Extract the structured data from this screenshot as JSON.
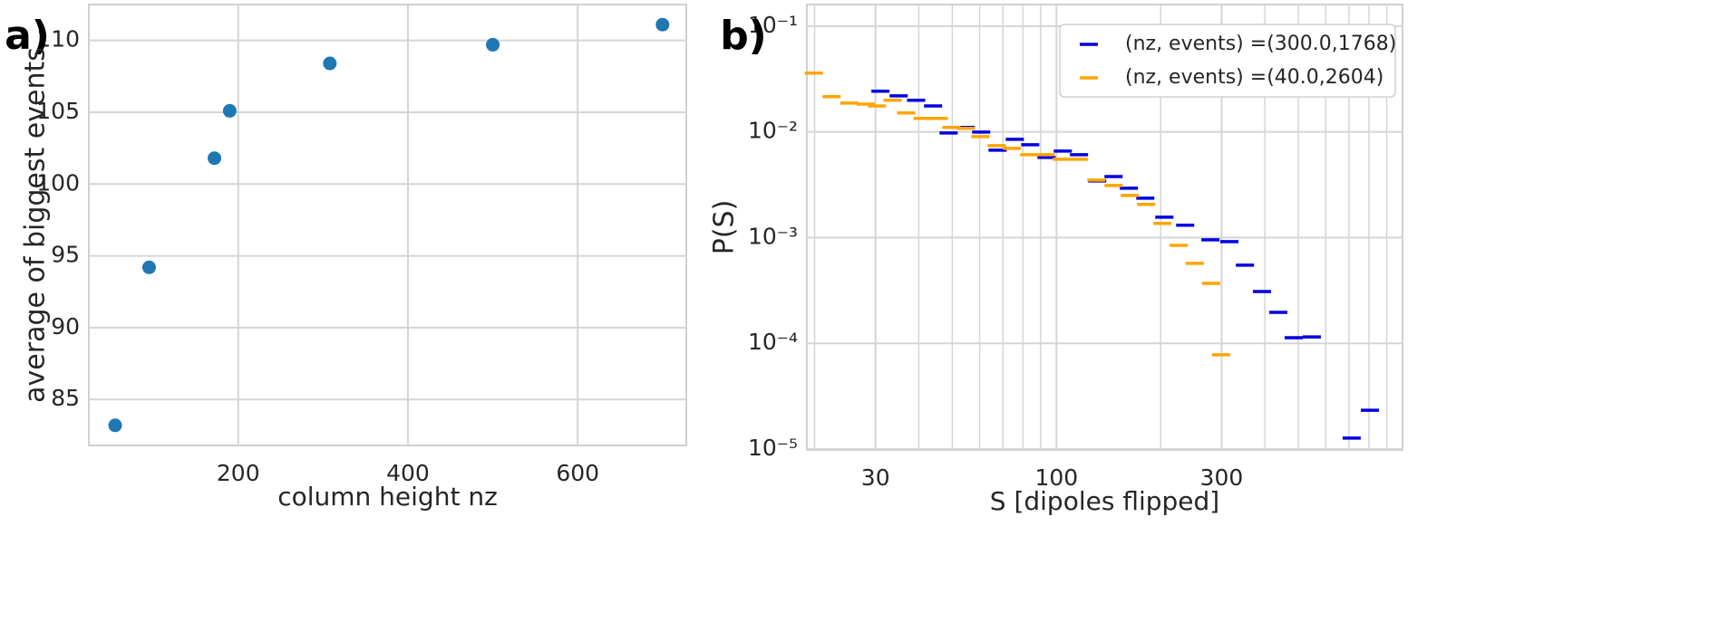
{
  "chart_data": [
    {
      "type": "scatter",
      "label": "a)",
      "xlabel": "column height nz",
      "ylabel": "average of biggest events",
      "x": [
        55,
        95,
        172,
        190,
        308,
        500,
        700
      ],
      "values": [
        83.2,
        94.2,
        101.8,
        105.1,
        108.4,
        109.7,
        111.1
      ],
      "color": "#1f77b4",
      "marker": "o",
      "xlim": [
        24,
        728
      ],
      "xticks": [
        200,
        400,
        600
      ],
      "ylim": [
        81.8,
        112.5
      ],
      "yticks": [
        85,
        90,
        95,
        100,
        105,
        110
      ],
      "grid": true
    },
    {
      "type": "scatter",
      "label": "b)",
      "xlabel": "S [dipoles flipped]",
      "ylabel": "P(S)",
      "xscale": "log",
      "yscale": "log",
      "marker": "_",
      "legend": "upper right",
      "grid": true,
      "xlim": [
        19,
        1000
      ],
      "xticks": [
        30,
        100,
        300
      ],
      "xminorticks": [
        20,
        40,
        50,
        60,
        70,
        80,
        90,
        200,
        400,
        500,
        600,
        700,
        800,
        900
      ],
      "ylim": [
        9.8e-06,
        0.16
      ],
      "yticks": [
        {
          "value": 0.1,
          "label": "10⁻¹"
        },
        {
          "value": 0.01,
          "label": "10⁻²"
        },
        {
          "value": 0.001,
          "label": "10⁻³"
        },
        {
          "value": 0.0001,
          "label": "10⁻⁴"
        },
        {
          "value": 1e-05,
          "label": "10⁻⁵"
        }
      ],
      "series": [
        {
          "name": "(nz, events) =(300.0,1768)",
          "color": "#0000e0",
          "x": [
            31.0,
            35.0,
            39.3,
            44.0,
            48.8,
            54.7,
            60.6,
            67.6,
            75.8,
            84.0,
            93.6,
            104.3,
            116.2,
            131.1,
            146.2,
            161.9,
            180.6,
            205,
            235.5,
            278.6,
            316,
            350.5,
            392.7,
            437.7,
            485,
            547,
            713,
            805
          ],
          "values": [
            0.0242,
            0.0219,
            0.0199,
            0.0176,
            0.00975,
            0.011,
            0.00996,
            0.00671,
            0.00849,
            0.00755,
            0.00573,
            0.00658,
            0.00608,
            0.00343,
            0.00378,
            0.00293,
            0.00236,
            0.00156,
            0.00131,
            0.000953,
            0.000915,
            0.000548,
            0.000309,
            0.000196,
            0.000113,
            0.000115,
            1.27e-05,
            2.33e-05
          ]
        },
        {
          "name": "(nz, events) =(40.0,2604)",
          "color": "#ffa500",
          "x": [
            19.9,
            22.4,
            25.2,
            28.1,
            30.3,
            33.6,
            36.8,
            41.0,
            45.7,
            49.7,
            54.7,
            60.3,
            67.2,
            74.4,
            83.4,
            93.0,
            103.7,
            116.2,
            130.4,
            146.2,
            162.9,
            181.6,
            202.4,
            225.6,
            251,
            280,
            299
          ],
          "values": [
            0.0359,
            0.0215,
            0.0187,
            0.0183,
            0.0176,
            0.0199,
            0.0151,
            0.0134,
            0.0134,
            0.011,
            0.0108,
            0.00902,
            0.0074,
            0.00698,
            0.00608,
            0.00608,
            0.00551,
            0.00551,
            0.0035,
            0.00311,
            0.0025,
            0.00206,
            0.00136,
            0.000845,
            0.00057,
            0.000369,
            7.78e-05
          ]
        }
      ]
    }
  ]
}
